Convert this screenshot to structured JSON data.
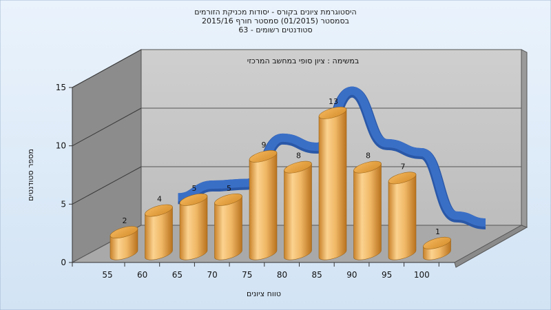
{
  "chart_data": {
    "type": "bar",
    "title": "היסטוגרמת ציונים בקורס - יסודות מכניקת הזורמים",
    "subtitle_lines": [
      "בסמסטר  (01/2015)  סמסטר חורף 2015/16",
      "סטודנטים רשומים - 63"
    ],
    "annotation": "במשימה : ציון סופי במחשב המרכזי",
    "xlabel": "טווח ציונים",
    "ylabel": "מספר סטודנטים",
    "categories": [
      "55",
      "60",
      "65",
      "70",
      "75",
      "80",
      "85",
      "90",
      "95",
      "100"
    ],
    "values": [
      2,
      4,
      5,
      5,
      9,
      8,
      13,
      8,
      7,
      1
    ],
    "ylim": [
      0,
      15
    ],
    "yticks": [
      0,
      5,
      10,
      15
    ],
    "grid": true,
    "style": "3d-cylinder",
    "overlay": "smoothed distribution ribbon"
  },
  "colors": {
    "background_top": "#eaf3fc",
    "background_bottom": "#d2e3f4",
    "wall_back": "#c7c7c7",
    "wall_left": "#8c8c8c",
    "floor": "#a9a9a9",
    "bar_light": "#fbd28f",
    "bar_dark": "#c9822a",
    "bar_top": "#e7a546",
    "ribbon": "#3a6fc6",
    "ribbon_dark": "#2a58a8"
  }
}
